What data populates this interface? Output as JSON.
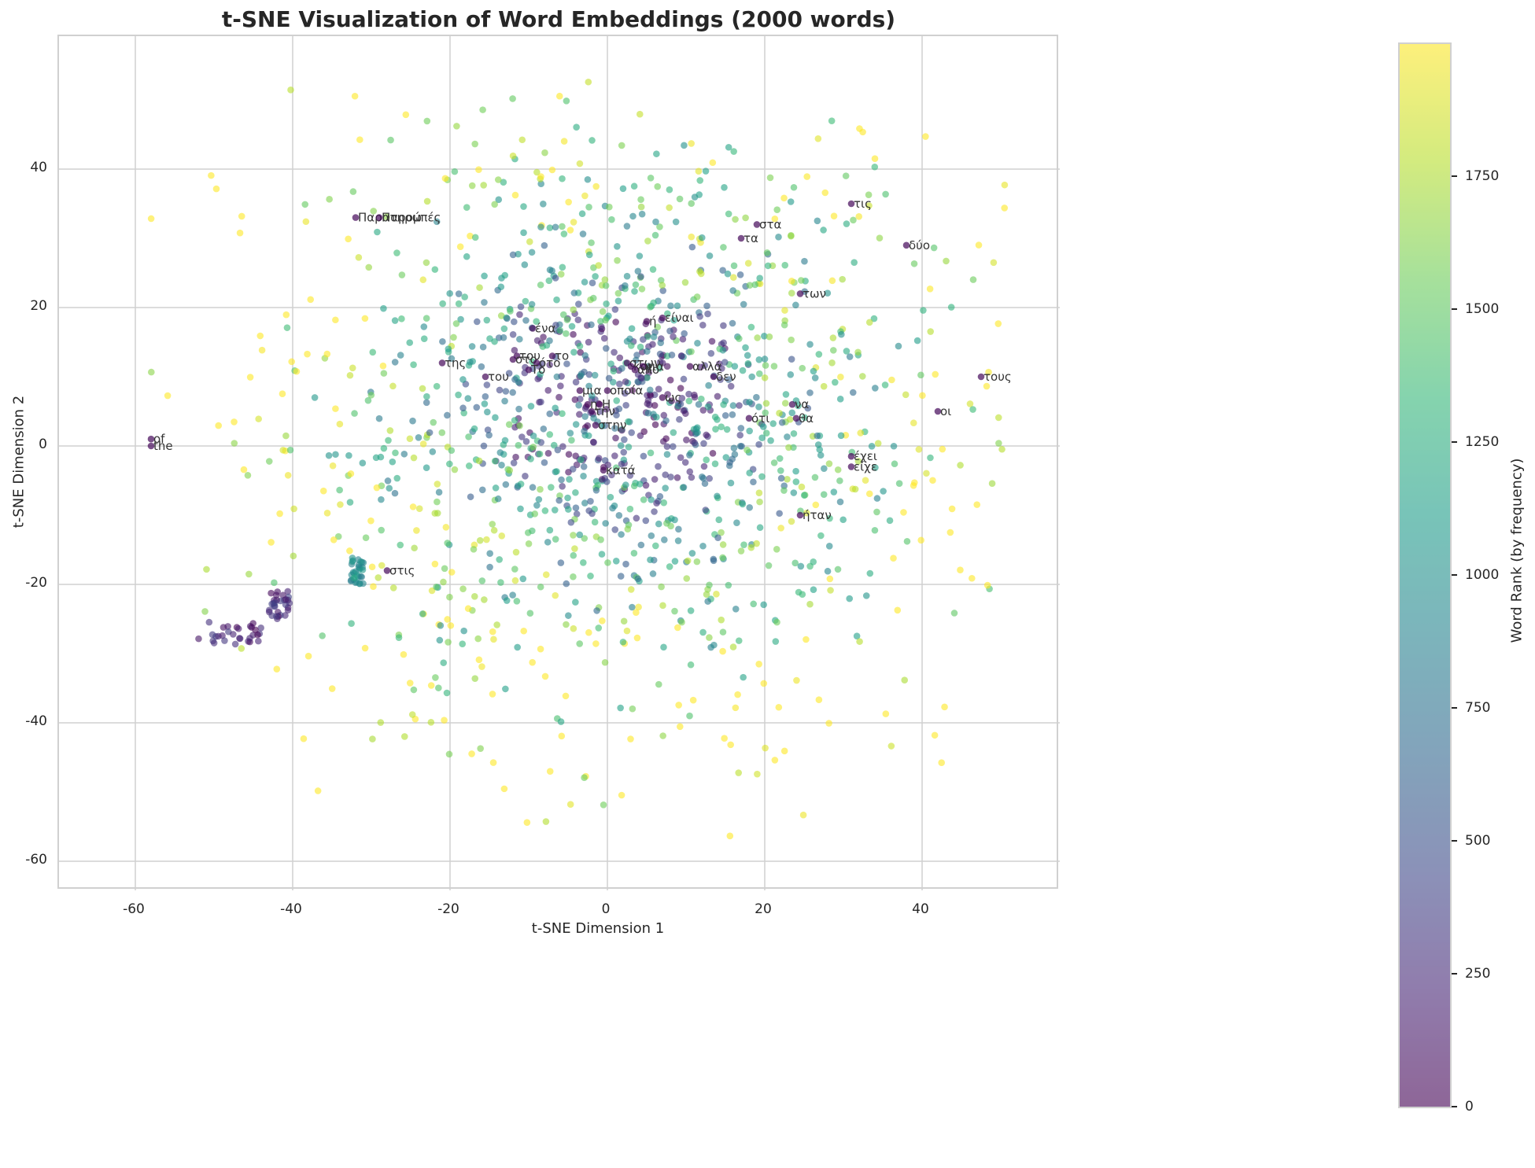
{
  "chart_data": {
    "type": "scatter",
    "title": "t-SNE Visualization of Word Embeddings (2000 words)",
    "xlabel": "t-SNE Dimension 1",
    "ylabel": "t-SNE Dimension 2",
    "xlim": [
      -70,
      57
    ],
    "ylim": [
      -64,
      59
    ],
    "xticks": [
      -60,
      -40,
      -20,
      0,
      20,
      40
    ],
    "yticks": [
      -60,
      -40,
      -20,
      0,
      20,
      40
    ],
    "grid": true,
    "colorbar": {
      "label": "Word Rank (by frequency)",
      "colormap": "viridis",
      "range": [
        0,
        1999
      ],
      "ticks": [
        0,
        250,
        500,
        750,
        1000,
        1250,
        1500,
        1750
      ]
    },
    "n_points": 2000,
    "annotations": [
      {
        "text": "Παρατηρώ",
        "x": -32,
        "y": 33
      },
      {
        "text": "Παρομπές",
        "x": -29,
        "y": 33
      },
      {
        "text": "της",
        "x": -21,
        "y": 12
      },
      {
        "text": "του",
        "x": -15.5,
        "y": 10
      },
      {
        "text": "ένα",
        "x": -9.5,
        "y": 17
      },
      {
        "text": "του",
        "x": -11.5,
        "y": 13
      },
      {
        "text": "το",
        "x": -7,
        "y": 13
      },
      {
        "text": "στο",
        "x": -12,
        "y": 12.5
      },
      {
        "text": "ότο",
        "x": -9,
        "y": 12
      },
      {
        "text": "Το",
        "x": -10,
        "y": 11
      },
      {
        "text": "ή",
        "x": 5,
        "y": 18
      },
      {
        "text": "είναι",
        "x": 7,
        "y": 18.5
      },
      {
        "text": "στων",
        "x": 2.5,
        "y": 12
      },
      {
        "text": "και",
        "x": 3,
        "y": 11.5
      },
      {
        "text": "για",
        "x": 4.5,
        "y": 11.5
      },
      {
        "text": "από",
        "x": 3.5,
        "y": 11
      },
      {
        "text": "αλλά",
        "x": 10.5,
        "y": 11.5
      },
      {
        "text": "δεν",
        "x": 13.5,
        "y": 10
      },
      {
        "text": "μια",
        "x": -3.5,
        "y": 8
      },
      {
        "text": "οποία",
        "x": 0,
        "y": 8
      },
      {
        "text": "ως",
        "x": 7,
        "y": 7
      },
      {
        "text": "η",
        "x": -2.5,
        "y": 6
      },
      {
        "text": "Η",
        "x": -1,
        "y": 6
      },
      {
        "text": "την",
        "x": -2,
        "y": 5
      },
      {
        "text": "στην",
        "x": -1.5,
        "y": 3
      },
      {
        "text": "κατά",
        "x": -0.5,
        "y": -3.5
      },
      {
        "text": "ότι",
        "x": 18,
        "y": 4
      },
      {
        "text": "να",
        "x": 23.5,
        "y": 6
      },
      {
        "text": "θα",
        "x": 24,
        "y": 4
      },
      {
        "text": "έχει",
        "x": 31,
        "y": -1.5
      },
      {
        "text": "είχε",
        "x": 31,
        "y": -3
      },
      {
        "text": "ήταν",
        "x": 24.5,
        "y": -10
      },
      {
        "text": "στα",
        "x": 19,
        "y": 32
      },
      {
        "text": "τα",
        "x": 17,
        "y": 30
      },
      {
        "text": "των",
        "x": 24.5,
        "y": 22
      },
      {
        "text": "τις",
        "x": 31,
        "y": 35
      },
      {
        "text": "δύο",
        "x": 38,
        "y": 29
      },
      {
        "text": "τους",
        "x": 47.5,
        "y": 10
      },
      {
        "text": "οι",
        "x": 42,
        "y": 5
      },
      {
        "text": "the",
        "x": -58,
        "y": 0
      },
      {
        "text": "of",
        "x": -58,
        "y": 1
      },
      {
        "text": "στις",
        "x": -28,
        "y": -18
      }
    ],
    "clusters": [
      {
        "description": "dense low-rank (purple) tail",
        "x_range": [
          -52,
          -44
        ],
        "y_range": [
          -29,
          -25
        ]
      },
      {
        "description": "dense low-rank cluster",
        "x_range": [
          -43,
          -40
        ],
        "y_range": [
          -25,
          -21
        ]
      },
      {
        "description": "teal cluster near στις",
        "x_range": [
          -33,
          -31
        ],
        "y_range": [
          -20,
          -16
        ]
      },
      {
        "description": "central low-rank (purple) core",
        "x_range": [
          -12,
          15
        ],
        "y_range": [
          -5,
          20
        ]
      }
    ]
  },
  "colors": {
    "viridis_low": "#440154",
    "viridis_mid": "#21918c",
    "viridis_high": "#fde725",
    "grid": "#d0d0d0",
    "text": "#262626"
  }
}
